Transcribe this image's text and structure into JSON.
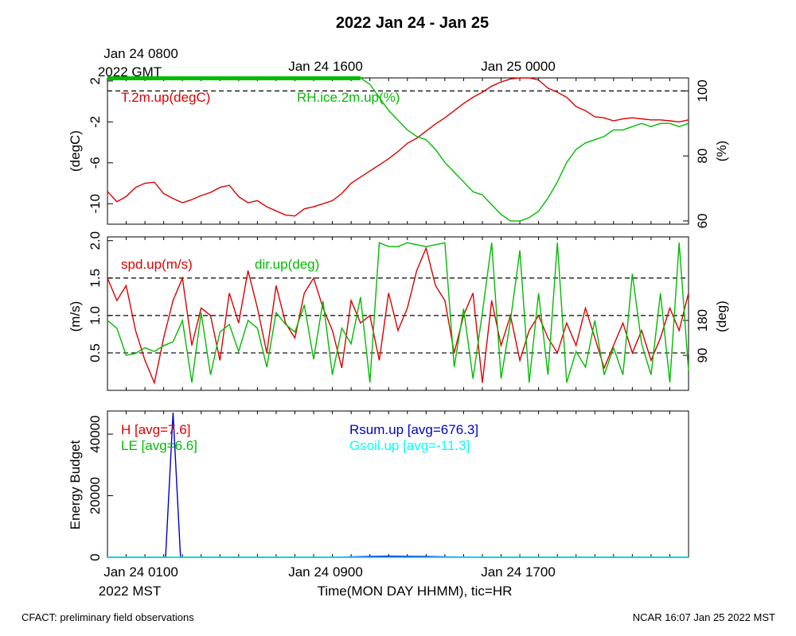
{
  "title": "2022 Jan 24 - Jan 25",
  "top_time_labels": [
    "Jan 24 0800",
    "2022 GMT",
    "Jan 24 1600",
    "Jan 25 0000"
  ],
  "bottom_time_labels": [
    "Jan 24 0100",
    "2022 MST",
    "Jan 24 0900",
    "Jan 24 1700"
  ],
  "xlabel": "Time(MON DAY HHMM), tic=HR",
  "footer_left": "CFACT: preliminary field observations",
  "footer_right": "NCAR 16:07 Jan 25 2022 MST",
  "colors": {
    "red": "#dd0000",
    "green": "#00bb00",
    "blue": "#0000cc",
    "cyan": "#00ffff",
    "black": "#000000"
  },
  "chart_data": [
    {
      "type": "line",
      "panel": "temperature-humidity",
      "xlim_hours_mst": [
        0,
        31
      ],
      "left_axis": {
        "label": "(degC)",
        "ticks": [
          "2",
          "-2",
          "-6",
          "-10"
        ],
        "ylim": [
          -12,
          2.3
        ]
      },
      "right_axis": {
        "label": "(%)",
        "ticks": [
          "100",
          "80",
          "60"
        ],
        "ylim": [
          59,
          104
        ]
      },
      "reference_lines_right": [
        100
      ],
      "series": [
        {
          "name": "T.2m.up(degC)",
          "color": "red",
          "axis": "left",
          "x": [
            0,
            0.5,
            1,
            1.5,
            2,
            2.5,
            3,
            3.5,
            4,
            4.5,
            5,
            5.5,
            6,
            6.5,
            7,
            7.5,
            8,
            8.5,
            9,
            9.5,
            10,
            10.5,
            11,
            11.5,
            12,
            12.5,
            13,
            13.5,
            14,
            14.5,
            15,
            15.5,
            16,
            16.5,
            17,
            17.5,
            18,
            18.5,
            19,
            19.5,
            20,
            20.5,
            21,
            21.5,
            22,
            22.5,
            23,
            23.5,
            24,
            24.5,
            25,
            25.5,
            26,
            26.5,
            27,
            27.5,
            28,
            28.5,
            29,
            29.5,
            30,
            30.5,
            31
          ],
          "y": [
            -8.8,
            -9.8,
            -9.3,
            -8.4,
            -8.0,
            -7.9,
            -9.0,
            -9.5,
            -9.9,
            -9.6,
            -9.2,
            -8.9,
            -8.4,
            -8.2,
            -9.3,
            -9.9,
            -9.7,
            -10.3,
            -10.7,
            -11.1,
            -11.2,
            -10.5,
            -10.3,
            -10.0,
            -9.7,
            -9.0,
            -8.0,
            -7.4,
            -6.8,
            -6.2,
            -5.6,
            -4.9,
            -4.1,
            -3.6,
            -2.9,
            -2.2,
            -1.6,
            -0.9,
            -0.2,
            0.4,
            0.9,
            1.5,
            1.9,
            2.2,
            2.4,
            2.4,
            2.1,
            1.3,
            0.9,
            0.4,
            -0.5,
            -0.9,
            -1.5,
            -1.6,
            -1.9,
            -1.7,
            -1.6,
            -1.7,
            -1.8,
            -1.8,
            -1.9,
            -2.0,
            -1.8
          ]
        },
        {
          "name": "RH.ice.2m.up(%)",
          "color": "green",
          "axis": "right",
          "x": [
            0,
            13.5,
            14,
            14.5,
            15,
            15.5,
            16,
            16.5,
            17,
            17.5,
            18,
            18.5,
            19,
            19.5,
            20,
            20.5,
            21,
            21.5,
            22,
            22.5,
            23,
            23.5,
            24,
            24.5,
            25,
            25.5,
            26,
            26.5,
            27,
            27.5,
            28,
            28.5,
            29,
            29.5,
            30,
            30.5,
            31
          ],
          "y": [
            104,
            104,
            102,
            98,
            94,
            91,
            88,
            86,
            85,
            82,
            78,
            75,
            72,
            69,
            68,
            65,
            62,
            60,
            60,
            61,
            63,
            67,
            72,
            78,
            82,
            84,
            85,
            86,
            88,
            88,
            89,
            90,
            89,
            90,
            90,
            89,
            90
          ]
        }
      ]
    },
    {
      "type": "line",
      "panel": "wind",
      "xlim_hours_mst": [
        0,
        31
      ],
      "left_axis": {
        "label": "(m/s)",
        "ticks": [
          "2.0",
          "1.5",
          "1.0",
          "0.5"
        ],
        "ylim": [
          0,
          2.05
        ]
      },
      "right_axis": {
        "label": "(deg)",
        "ticks": [
          "180",
          "90"
        ],
        "ylim": [
          0,
          395
        ]
      },
      "reference_lines_left": [
        0.5,
        1.0,
        1.5
      ],
      "series": [
        {
          "name": "spd.up(m/s)",
          "color": "red",
          "axis": "left",
          "x": [
            0,
            0.5,
            1,
            1.5,
            2,
            2.5,
            3,
            3.5,
            4,
            4.5,
            5,
            5.5,
            6,
            6.5,
            7,
            7.5,
            8,
            8.5,
            9,
            9.5,
            10,
            10.5,
            11,
            11.5,
            12,
            12.5,
            13,
            13.5,
            14,
            14.5,
            15,
            15.5,
            16,
            16.5,
            17,
            17.5,
            18,
            18.5,
            19,
            19.5,
            20,
            20.5,
            21,
            21.5,
            22,
            22.5,
            23,
            23.5,
            24,
            24.5,
            25,
            25.5,
            26,
            26.5,
            27,
            27.5,
            28,
            28.5,
            29,
            29.5,
            30,
            30.5,
            31
          ],
          "y": [
            1.5,
            1.2,
            1.4,
            0.8,
            0.4,
            0.1,
            0.7,
            1.2,
            1.5,
            0.6,
            1.1,
            1.0,
            0.4,
            1.3,
            0.9,
            1.6,
            1.1,
            0.5,
            1.4,
            0.9,
            0.7,
            1.3,
            1.5,
            1.1,
            0.8,
            0.3,
            1.2,
            0.9,
            1.0,
            0.4,
            1.3,
            0.8,
            1.1,
            1.6,
            1.9,
            1.4,
            1.2,
            0.5,
            1.0,
            1.3,
            0.1,
            1.2,
            0.6,
            1.0,
            0.4,
            0.8,
            1.0,
            0.7,
            0.5,
            0.9,
            0.6,
            1.1,
            0.7,
            0.3,
            0.6,
            0.9,
            0.5,
            0.8,
            0.4,
            0.7,
            1.1,
            0.8,
            1.3
          ]
        },
        {
          "name": "dir.up(deg)",
          "color": "green",
          "axis": "right",
          "x": [
            0,
            0.5,
            1,
            1.5,
            2,
            2.5,
            3,
            3.5,
            4,
            4.5,
            5,
            5.5,
            6,
            6.5,
            7,
            7.5,
            8,
            8.5,
            9,
            9.5,
            10,
            10.5,
            11,
            11.5,
            12,
            12.5,
            13,
            13.5,
            14,
            14.5,
            15,
            15.5,
            16,
            16.5,
            17,
            17.5,
            18,
            18.5,
            19,
            19.5,
            20,
            20.5,
            21,
            21.5,
            22,
            22.5,
            23,
            23.5,
            24,
            24.5,
            25,
            25.5,
            26,
            26.5,
            27,
            27.5,
            28,
            28.5,
            29,
            29.5,
            30,
            30.5,
            31
          ],
          "y": [
            180,
            160,
            90,
            95,
            110,
            100,
            115,
            125,
            180,
            20,
            200,
            40,
            150,
            170,
            100,
            180,
            160,
            60,
            200,
            170,
            150,
            220,
            80,
            230,
            40,
            160,
            120,
            240,
            20,
            380,
            370,
            370,
            380,
            375,
            370,
            375,
            380,
            60,
            210,
            30,
            200,
            380,
            30,
            180,
            360,
            20,
            250,
            40,
            380,
            20,
            100,
            60,
            180,
            40,
            110,
            40,
            300,
            120,
            40,
            250,
            20,
            380,
            50
          ]
        }
      ]
    },
    {
      "type": "line",
      "panel": "energy-budget",
      "xlim_hours_mst": [
        0,
        31
      ],
      "left_axis": {
        "label": "Energy Budget",
        "ticks": [
          "0",
          "20000",
          "40000"
        ],
        "ylim": [
          0,
          47500
        ]
      },
      "series": [
        {
          "name": "H [avg=7.6]",
          "color": "red",
          "x": [
            0,
            31
          ],
          "y": [
            0,
            0
          ]
        },
        {
          "name": "LE [avg=6.6]",
          "color": "green",
          "x": [
            0,
            31
          ],
          "y": [
            0,
            0
          ]
        },
        {
          "name": "Rsum.up [avg=676.3]",
          "color": "blue",
          "x": [
            0,
            3.1,
            3.5,
            3.9,
            4.3,
            12,
            13,
            14,
            15,
            16,
            17,
            18,
            19,
            20,
            31
          ],
          "y": [
            0,
            0,
            47000,
            0,
            0,
            0,
            150,
            250,
            350,
            300,
            250,
            150,
            80,
            0,
            0
          ]
        },
        {
          "name": "Gsoil.up [avg=-11.3]",
          "color": "cyan",
          "x": [
            0,
            31
          ],
          "y": [
            0,
            0
          ]
        }
      ]
    }
  ]
}
